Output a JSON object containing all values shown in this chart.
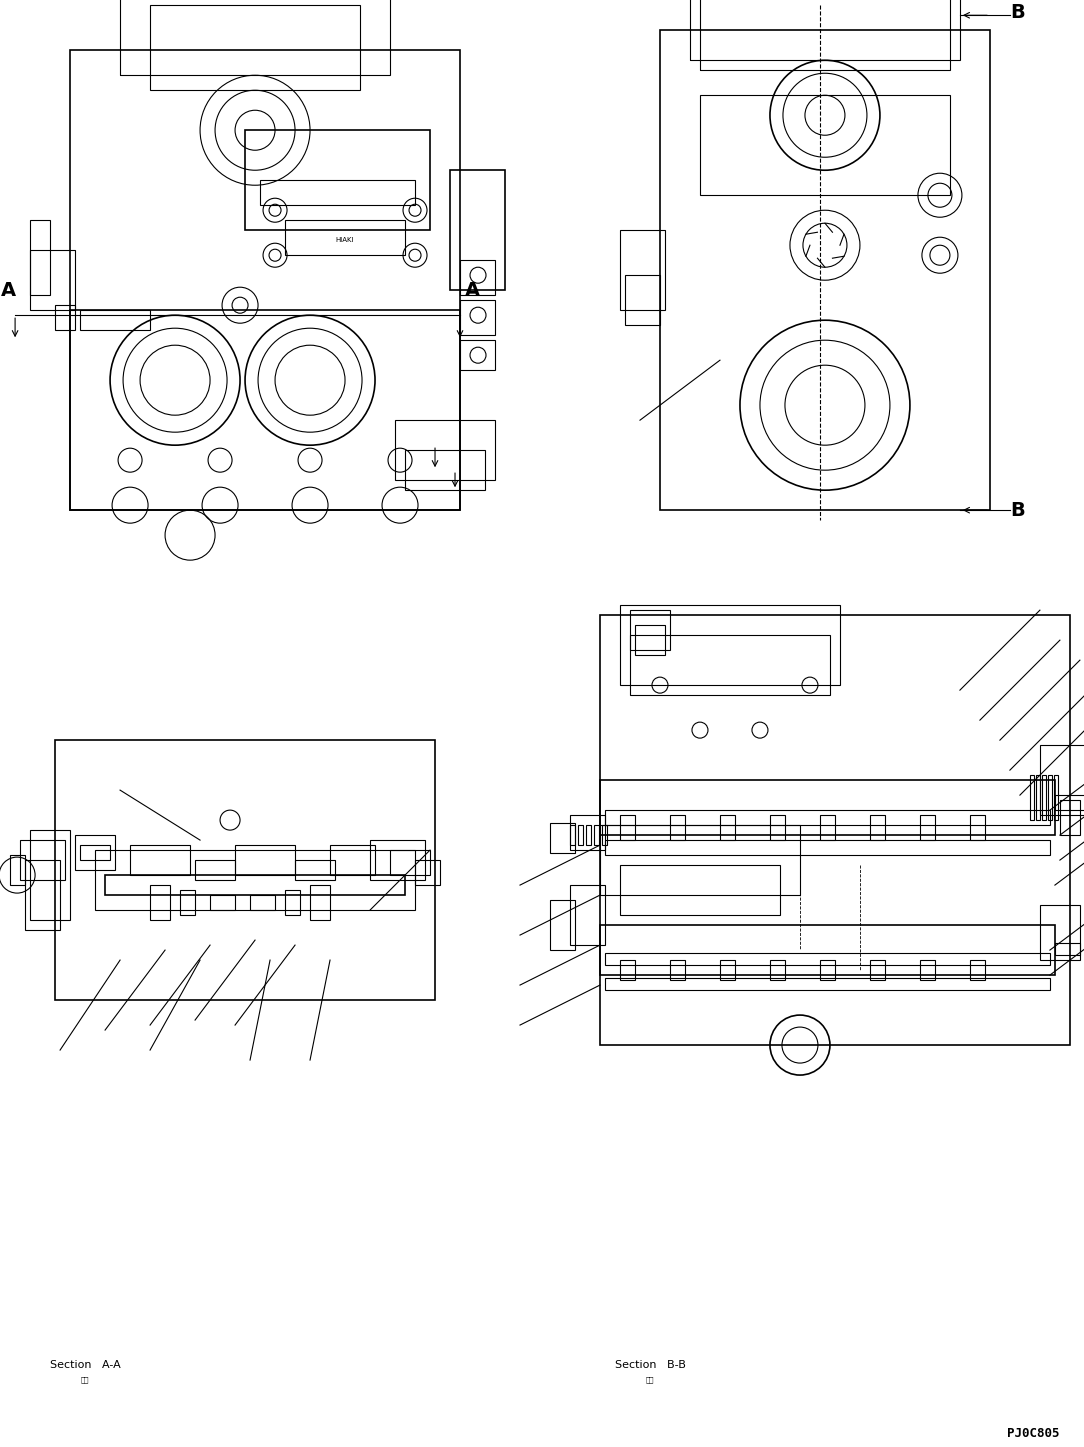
{
  "bg_color": "#ffffff",
  "line_color": "#000000",
  "fig_width": 10.84,
  "fig_height": 14.47,
  "dpi": 100,
  "label_A_left": "A",
  "label_A_right": "A",
  "label_B_top": "B",
  "label_B_bottom": "B",
  "section_AA_label": "Section   A-A",
  "section_BB_label": "Section   B-B",
  "part_number": "PJ0C805",
  "kanji_section": "断面"
}
